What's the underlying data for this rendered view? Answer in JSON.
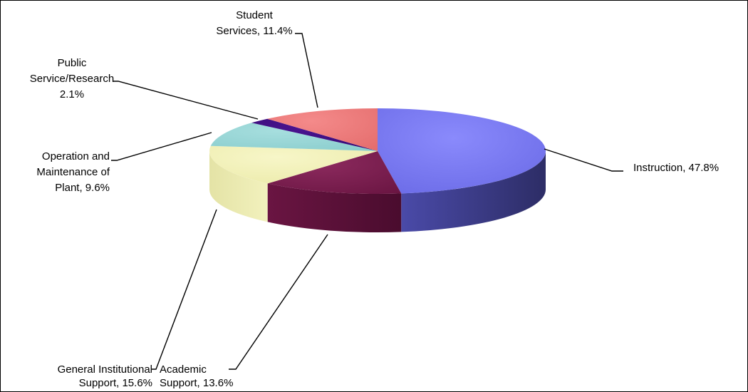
{
  "chart_data": {
    "type": "pie",
    "variant": "3d",
    "title": "",
    "slices": [
      {
        "name": "Instruction",
        "value": 47.8,
        "label": [
          "Instruction, 47.8%"
        ],
        "color": "#7878F0"
      },
      {
        "name": "Academic Support",
        "value": 13.6,
        "label": [
          "Academic",
          "Support, 13.6%"
        ],
        "color": "#7A1B4E"
      },
      {
        "name": "General Institutional Support",
        "value": 15.6,
        "label": [
          "General Institutional",
          "Support, 15.6%"
        ],
        "color": "#F0EFB4"
      },
      {
        "name": "Operation and Maintenance of Plant",
        "value": 9.6,
        "label": [
          "Operation and",
          "Maintenance of",
          "Plant, 9.6%"
        ],
        "color": "#96D4D4"
      },
      {
        "name": "Public Service/Research",
        "value": 2.1,
        "label": [
          "Public",
          "Service/Research",
          "2.1%"
        ],
        "color": "#3A0A7A"
      },
      {
        "name": "Student Services",
        "value": 11.4,
        "label": [
          "Student",
          "Services, 11.4%"
        ],
        "color": "#EE7878"
      }
    ]
  }
}
